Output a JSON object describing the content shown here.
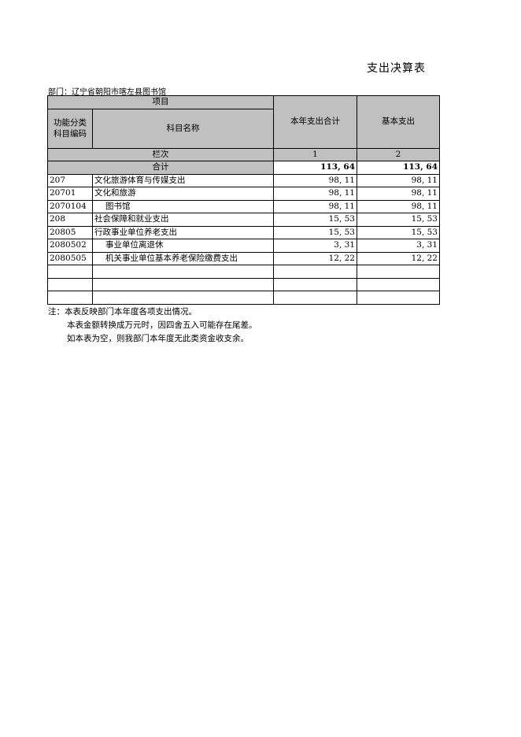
{
  "title": "支出决算表",
  "department": "部门：辽宁省朝阳市喀左县图书馆",
  "header": {
    "item": "项目",
    "code": "功能分类科目编码",
    "code_l1": "功能分类",
    "code_l2": "科目编码",
    "name": "科目名称",
    "col1": "本年支出合计",
    "col2": "基本支出",
    "row_index": "栏次",
    "idx1": "1",
    "idx2": "2",
    "total_label": "合计",
    "total1": "113, 64",
    "total2": "113, 64"
  },
  "rows": [
    {
      "code": "207",
      "name": "文化旅游体育与传媒支出",
      "v1": "98, 11",
      "v2": "98, 11",
      "indent": false
    },
    {
      "code": "20701",
      "name": "文化和旅游",
      "v1": "98, 11",
      "v2": "98, 11",
      "indent": false
    },
    {
      "code": "2070104",
      "name": "图书馆",
      "v1": "98, 11",
      "v2": "98, 11",
      "indent": true
    },
    {
      "code": "208",
      "name": "社会保障和就业支出",
      "v1": "15, 53",
      "v2": "15, 53",
      "indent": false
    },
    {
      "code": "20805",
      "name": "行政事业单位养老支出",
      "v1": "15, 53",
      "v2": "15, 53",
      "indent": false
    },
    {
      "code": "2080502",
      "name": "事业单位离退休",
      "v1": "3, 31",
      "v2": "3, 31",
      "indent": true
    },
    {
      "code": "2080505",
      "name": "机关事业单位基本养老保险缴费支出",
      "v1": "12, 22",
      "v2": "12, 22",
      "indent": true
    }
  ],
  "notes": [
    "注：本表反映部门本年度各项支出情况。",
    "本表金额转换成万元时，因四舍五入可能存在尾差。",
    "如本表为空，则我部门本年度无此类资金收支余。"
  ]
}
